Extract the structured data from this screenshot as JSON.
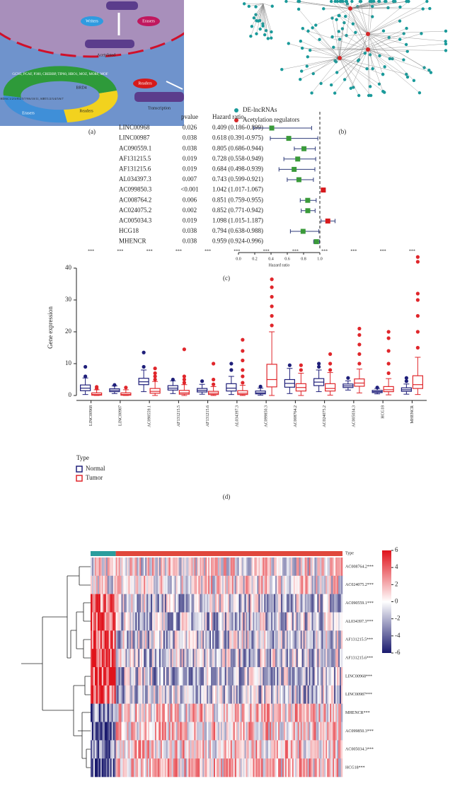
{
  "panel_a": {
    "label": "(a)",
    "writers": "Writers",
    "erasers": "Erasers",
    "acetylated": "Acetylated",
    "readers_top": "Readers",
    "transcription": "Transcription",
    "writers_list": "GCN5, PCAF, P300, CREBBP, TIP60, HBO1, MOZ, MORF, MOF",
    "readers_ring": "BRD4",
    "readers_ring_label": "Readers",
    "erasers_list": "HDAC1/2/3/8/4/5/7/9/6/10/11, SIRT1/2/3/4/5/6/7",
    "erasers_ring_label": "Erasers"
  },
  "panel_b": {
    "label": "(b)",
    "legend": [
      {
        "name": "DE-lncRNAs",
        "color": "#1a9a9a"
      },
      {
        "name": "Acetylation regulators",
        "color": "#d62728"
      }
    ]
  },
  "chart_data": [
    {
      "type": "forest",
      "panel_label": "(c)",
      "pvalue_header": "pvalue",
      "hr_header": "Hazard ratio",
      "categories": [
        "LINC00968",
        "LINC00987",
        "AC090559.1",
        "AF131215.5",
        "AF131215.6",
        "AL034397.3",
        "AC099850.3",
        "AC008764.2",
        "AC024075.2",
        "AC005034.3",
        "HCG18",
        "MHENCR"
      ],
      "pvalues": [
        "0.026",
        "0.038",
        "0.038",
        "0.019",
        "0.019",
        "0.007",
        "<0.001",
        "0.006",
        "0.002",
        "0.019",
        "0.038",
        "0.038"
      ],
      "values": [
        0.409,
        0.618,
        0.805,
        0.728,
        0.684,
        0.743,
        1.042,
        0.851,
        0.852,
        1.098,
        0.794,
        0.959
      ],
      "lower": [
        0.186,
        0.391,
        0.686,
        0.558,
        0.498,
        0.599,
        1.017,
        0.759,
        0.771,
        1.015,
        0.638,
        0.924
      ],
      "upper": [
        0.899,
        0.975,
        0.944,
        0.949,
        0.939,
        0.921,
        1.067,
        0.955,
        0.942,
        1.187,
        0.988,
        0.996
      ],
      "value_labels": [
        "0.409 (0.186-0.899)",
        "0.618 (0.391-0.975)",
        "0.805 (0.686-0.944)",
        "0.728 (0.558-0.949)",
        "0.684 (0.498-0.939)",
        "0.743 (0.599-0.921)",
        "1.042 (1.017-1.067)",
        "0.851 (0.759-0.955)",
        "0.852 (0.771-0.942)",
        "1.098 (1.015-1.187)",
        "0.794 (0.638-0.988)",
        "0.959 (0.924-0.996)"
      ],
      "xlim": [
        0,
        1.2
      ],
      "xticks": [
        {
          "value": 0,
          "label": "0.0"
        },
        {
          "value": 0.2,
          "label": "0.2"
        },
        {
          "value": 0.4,
          "label": "0.4"
        },
        {
          "value": 0.6,
          "label": "0.6"
        },
        {
          "value": 0.8,
          "label": "0.8"
        },
        {
          "value": 1,
          "label": "1.0"
        }
      ],
      "xlabel": "Hazard ratio",
      "reference_line": 1,
      "colors": {
        "below": "#3a9a3a",
        "above": "#d7191c",
        "interval": "#2f3b7a"
      }
    },
    {
      "type": "box",
      "panel_label": "(d)",
      "ylabel": "Gene expression",
      "legend_title": "Type",
      "categories": [
        "LINC00968",
        "LINC00987",
        "AC090559.1",
        "AF131215.5",
        "AF131215.6",
        "AL034397.3",
        "AC099850.3",
        "AC008764.2",
        "AC024075.2",
        "AC005034.3",
        "HCG18",
        "MHENCR"
      ],
      "significance": [
        "***",
        "***",
        "***",
        "***",
        "***",
        "***",
        "***",
        "***",
        "***",
        "***",
        "***",
        "***"
      ],
      "ylim": [
        -1.5,
        44
      ],
      "yticks": [
        0,
        10,
        20,
        30,
        40
      ],
      "series": [
        {
          "name": "Normal",
          "color": "#1f1f7a",
          "q1": [
            1.5,
            1.2,
            3.4,
            1.7,
            1.1,
            1.4,
            0.5,
            2.6,
            3.1,
            2.5,
            0.9,
            1.3
          ],
          "median": [
            2.3,
            1.6,
            4.3,
            2.3,
            1.6,
            2.3,
            0.8,
            3.8,
            4.2,
            3,
            1.2,
            1.8
          ],
          "q3": [
            3.3,
            2.1,
            5.4,
            3.1,
            2.2,
            3.7,
            1.4,
            5,
            5.3,
            3.6,
            1.6,
            2.4
          ],
          "whisker_low": [
            0.3,
            0.6,
            1.2,
            0.6,
            0.4,
            0.3,
            0.1,
            0.6,
            1.2,
            1.7,
            0.5,
            0.4
          ],
          "whisker_high": [
            5.5,
            3,
            8,
            4.6,
            3.5,
            6,
            2.3,
            8.5,
            8,
            4.6,
            2.2,
            3.6
          ],
          "outliers": [
            [
              6,
              9
            ],
            [
              3.3
            ],
            [
              9,
              13.5
            ],
            [
              5
            ],
            [
              4.5
            ],
            [
              8,
              10
            ],
            [
              2.8
            ],
            [
              9.5
            ],
            [
              9,
              10
            ],
            [
              5.5
            ],
            [
              2.5
            ],
            [
              4.5,
              5.5
            ]
          ]
        },
        {
          "name": "Tumor",
          "color": "#e0262b",
          "q1": [
            0.1,
            0.1,
            0.7,
            0.4,
            0.3,
            0.3,
            2.7,
            1.4,
            1.4,
            2.9,
            1.2,
            2.2
          ],
          "median": [
            0.3,
            0.3,
            1.3,
            0.8,
            0.7,
            0.7,
            5,
            2.5,
            2.2,
            3.9,
            1.8,
            3.4
          ],
          "q3": [
            0.8,
            0.8,
            2.2,
            1.6,
            1.3,
            1.5,
            9.8,
            3.7,
            3.7,
            5.2,
            2.8,
            6.2
          ],
          "whisker_low": [
            0,
            0,
            0,
            0,
            0,
            0,
            0,
            0,
            0.1,
            0.8,
            0.2,
            0.3
          ],
          "whisker_high": [
            1.8,
            1.8,
            4.4,
            3.4,
            2.8,
            3.2,
            20,
            7,
            7.2,
            8.3,
            5.3,
            12
          ],
          "outliers": [
            [
              2.2,
              2.7
            ],
            [
              2.5
            ],
            [
              5,
              6,
              7,
              8.5
            ],
            [
              4,
              5,
              6,
              14.5
            ],
            [
              3.5,
              5,
              10
            ],
            [
              4,
              6,
              8,
              11,
              14,
              17.5
            ],
            [
              22,
              25,
              28,
              31,
              34,
              36.5
            ],
            [
              8,
              9.5
            ],
            [
              8,
              10,
              13
            ],
            [
              10,
              13,
              16,
              19,
              21
            ],
            [
              7,
              10,
              14,
              18,
              20
            ],
            [
              15,
              20,
              25,
              30,
              32,
              42,
              43.5
            ]
          ]
        }
      ]
    },
    {
      "type": "heatmap",
      "annotation_label": "Type",
      "annotation_colors": [
        "#2a9d9d",
        "#e0473c"
      ],
      "rows": [
        "AC008764.2***",
        "AC024075.2***",
        "AC090559.1***",
        "AL034397.3***",
        "AF131215.5***",
        "AF131215.6***",
        "LINC00968***",
        "LINC00987***",
        "MHENCR***",
        "AC099850.3***",
        "AC005034.3***",
        "HCG18***"
      ],
      "clim": [
        -6,
        6
      ],
      "cticks": [
        6,
        4,
        2,
        0,
        -2,
        -4,
        -6
      ],
      "colors": {
        "low": "#1a1a6e",
        "mid": "#ffffff",
        "high": "#e0121b"
      }
    }
  ]
}
